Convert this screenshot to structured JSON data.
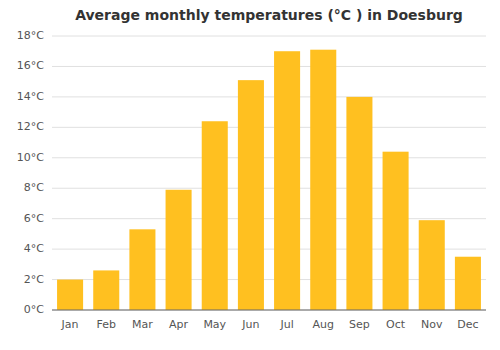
{
  "chart_data": {
    "type": "bar",
    "title": "Average monthly temperatures (°C ) in Doesburg",
    "categories": [
      "Jan",
      "Feb",
      "Mar",
      "Apr",
      "May",
      "Jun",
      "Jul",
      "Aug",
      "Sep",
      "Oct",
      "Nov",
      "Dec"
    ],
    "values": [
      2.0,
      2.6,
      5.3,
      7.9,
      12.4,
      15.1,
      17.0,
      17.1,
      14.0,
      10.4,
      5.9,
      3.5
    ],
    "color": "#FFC020",
    "ylim": [
      0,
      18
    ],
    "yticks": [
      {
        "value": 0,
        "label": "0°C"
      },
      {
        "value": 2,
        "label": "2°C"
      },
      {
        "value": 4,
        "label": "4°C"
      },
      {
        "value": 6,
        "label": "6°C"
      },
      {
        "value": 8,
        "label": "8°C"
      },
      {
        "value": 10,
        "label": "10°C"
      },
      {
        "value": 12,
        "label": "12°C"
      },
      {
        "value": 14,
        "label": "14°C"
      },
      {
        "value": 16,
        "label": "16°C"
      },
      {
        "value": 18,
        "label": "18°C"
      }
    ],
    "grid": true
  }
}
